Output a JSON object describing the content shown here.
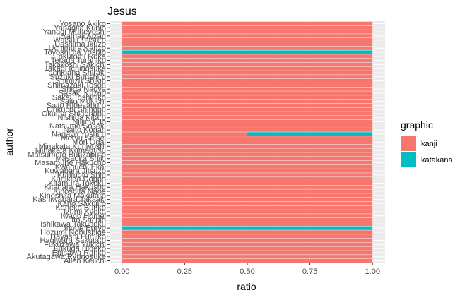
{
  "chart_data": {
    "type": "bar",
    "orientation": "horizontal",
    "stacked": true,
    "title": "Jesus",
    "xlabel": "ratio",
    "ylabel": "author",
    "xlim": [
      0,
      1
    ],
    "xticks": [
      "0.00",
      "0.25",
      "0.50",
      "0.75",
      "1.00"
    ],
    "grid": true,
    "legend_position": "right",
    "legend_title": "graphic",
    "categories": [
      "Allen Keiichi",
      "Akutagawa Ryunosuke",
      "Ebisawa Ranko",
      "Fukuda Hideko",
      "Fukuzawa Yukichi",
      "Hagiwara Sakutaro",
      "Hayashi Fumiko",
      "Hozumi Nobushige",
      "Inoue Enryo",
      "Ishikawa Takuboku",
      "Ito Sachio",
      "Iwano Homei",
      "Izumi Kyoka",
      "Kaneko Bunko",
      "Kano Sakujiro",
      "Kashiwabara Takaaki",
      "Kinoshita Mokutaro",
      "Kinoshita Naoe",
      "Kitahara Hakushu",
      "Kitamura Tokoku",
      "Kunikida Doppo",
      "Kurimoto Shin",
      "Kuwabara Jitsuzo",
      "Kwaguchi Ekai",
      "Masamune Hakucho",
      "Masaoka Shiki",
      "Matsumoto Bunzaburo",
      "Minakata Kumagusu",
      "Minakata Kuniyoshi",
      "Mori Ogai",
      "Moryu Seisei",
      "Nagayo Yoshiro",
      "Naito Konan",
      "Natsume Soseki",
      "Niijima Jo",
      "Nishida Kitaro",
      "Okuma Shigenobu",
      "Orikuchi Shinobu",
      "Saito Hidesaburo",
      "Saito Mokichi",
      "Sakai Toshihiko",
      "Sasaki Kuzuo",
      "Shiga Naoya",
      "Shimazaki Toson",
      "Shimizu Shikin",
      "Suzuki Bunshiro",
      "Tachibana Shiraki",
      "Takagi Ichinosuke",
      "Takakoshi Sakichi",
      "Terada Torahiko",
      "Tokutomi Roka",
      "Toyoshima Yoshio",
      "Uchimura Kanzo",
      "Ueshima Ikuzo",
      "Watsuji Tetsuro",
      "Yamaji Aizan",
      "Yanagi Muneyoshi",
      "Yanagita Kunio",
      "Yosano Akiko"
    ],
    "series": [
      {
        "name": "kanji",
        "color": "#F8766D",
        "values": [
          1,
          1,
          1,
          1,
          1,
          1,
          1,
          1,
          0,
          1,
          1,
          1,
          1,
          1,
          1,
          1,
          1,
          1,
          1,
          1,
          1,
          1,
          1,
          1,
          1,
          1,
          1,
          1,
          1,
          1,
          1,
          0.5,
          1,
          1,
          1,
          1,
          1,
          1,
          1,
          1,
          1,
          1,
          1,
          1,
          1,
          1,
          1,
          1,
          1,
          1,
          1,
          0,
          1,
          1,
          1,
          1,
          1,
          1,
          1
        ]
      },
      {
        "name": "katakana",
        "color": "#00BFC4",
        "values": [
          0,
          0,
          0,
          0,
          0,
          0,
          0,
          0,
          1,
          0,
          0,
          0,
          0,
          0,
          0,
          0,
          0,
          0,
          0,
          0,
          0,
          0,
          0,
          0,
          0,
          0,
          0,
          0,
          0,
          0,
          0,
          0.5,
          0,
          0,
          0,
          0,
          0,
          0,
          0,
          0,
          0,
          0,
          0,
          0,
          0,
          0,
          0,
          0,
          0,
          0,
          0,
          1,
          0,
          0,
          0,
          0,
          0,
          0,
          0
        ]
      }
    ]
  }
}
